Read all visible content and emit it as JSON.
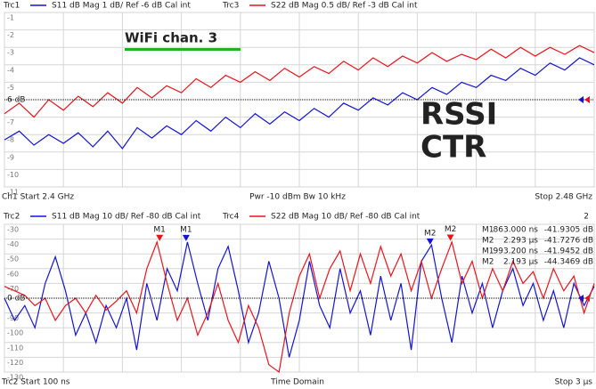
{
  "chart_data": [
    {
      "type": "line",
      "series": [
        {
          "name": "Trc1",
          "info": "S11  dB Mag  1 dB/ Ref -6 dB  Cal int",
          "color": "#1414d2",
          "values": [
            -8.3,
            -7.8,
            -8.6,
            -8.0,
            -8.5,
            -7.9,
            -8.7,
            -7.8,
            -8.8,
            -7.6,
            -8.2,
            -7.5,
            -8.0,
            -7.2,
            -7.8,
            -7.0,
            -7.6,
            -6.8,
            -7.4,
            -6.7,
            -7.2,
            -6.5,
            -7.0,
            -6.2,
            -6.6,
            -5.9,
            -6.3,
            -5.6,
            -6.0,
            -5.3,
            -5.7,
            -5.0,
            -5.3,
            -4.6,
            -4.9,
            -4.2,
            -4.6,
            -3.9,
            -4.3,
            -3.6,
            -4.0
          ]
        },
        {
          "name": "Trc3",
          "info": "S22  dB Mag  0.5 dB/ Ref -3 dB  Cal int",
          "color": "#e8141c",
          "values": [
            -6.8,
            -6.2,
            -7.0,
            -6.0,
            -6.6,
            -5.8,
            -6.4,
            -5.6,
            -6.2,
            -5.3,
            -5.9,
            -5.2,
            -5.6,
            -4.8,
            -5.3,
            -4.6,
            -5.0,
            -4.4,
            -4.9,
            -4.2,
            -4.7,
            -4.1,
            -4.5,
            -3.8,
            -4.3,
            -3.6,
            -4.1,
            -3.5,
            -3.9,
            -3.3,
            -3.8,
            -3.4,
            -3.7,
            -3.1,
            -3.6,
            -3.0,
            -3.5,
            -3.0,
            -3.4,
            -2.9,
            -3.3
          ]
        }
      ],
      "x": [
        2.4,
        2.402,
        2.404,
        2.406,
        2.408,
        2.41,
        2.412,
        2.414,
        2.416,
        2.418,
        2.42,
        2.422,
        2.424,
        2.426,
        2.428,
        2.43,
        2.432,
        2.434,
        2.436,
        2.438,
        2.44,
        2.442,
        2.444,
        2.446,
        2.448,
        2.45,
        2.452,
        2.454,
        2.456,
        2.458,
        2.46,
        2.462,
        2.464,
        2.466,
        2.468,
        2.47,
        2.472,
        2.474,
        2.476,
        2.478,
        2.48
      ],
      "xlim": [
        2.4,
        2.48
      ],
      "xgrid": [
        2.4,
        2.408,
        2.416,
        2.424,
        2.432,
        2.44,
        2.448,
        2.456,
        2.464,
        2.472,
        2.48
      ],
      "ylim": [
        -11,
        -1
      ],
      "yticks": [
        -1,
        -2,
        -3,
        -4,
        -5,
        -7,
        -8,
        -9,
        -10,
        -11
      ],
      "ref": {
        "value": -6,
        "label": "6 dB"
      },
      "annotations": [
        {
          "text": "WiFi chan. 3",
          "color": "#1fb51f"
        },
        {
          "text": "RSSI",
          "color": "#e8141c"
        },
        {
          "text": "CTR",
          "color": "#1414d2"
        }
      ],
      "footer": [
        "Ch1  Start  2.4 GHz",
        "Pwr  -10 dBm  Bw  10 kHz",
        "Stop  2.48 GHz"
      ]
    },
    {
      "type": "line",
      "channel": "2",
      "series": [
        {
          "name": "Trc2",
          "info": "S11  dB Mag  10 dB/ Ref -80 dB  Cal int",
          "color": "#1414d2",
          "values": [
            -80,
            -95,
            -85,
            -100,
            -70,
            -52,
            -75,
            -105,
            -90,
            -110,
            -85,
            -100,
            -80,
            -115,
            -70,
            -95,
            -60,
            -75,
            -42,
            -70,
            -95,
            -60,
            -45,
            -75,
            -110,
            -90,
            -55,
            -80,
            -120,
            -95,
            -55,
            -85,
            -100,
            -60,
            -90,
            -75,
            -105,
            -65,
            -95,
            -70,
            -115,
            -55,
            -44,
            -80,
            -110,
            -65,
            -90,
            -70,
            -100,
            -75,
            -60,
            -85,
            -70,
            -95,
            -75,
            -100,
            -70,
            -85,
            -72
          ]
        },
        {
          "name": "Trc4",
          "info": "S22  dB Mag  10 dB/ Ref -80 dB  Cal int",
          "color": "#e8141c",
          "values": [
            -72,
            -75,
            -78,
            -85,
            -80,
            -95,
            -85,
            -80,
            -90,
            -78,
            -88,
            -82,
            -75,
            -90,
            -60,
            -42,
            -70,
            -95,
            -80,
            -105,
            -90,
            -70,
            -95,
            -110,
            -85,
            -100,
            -125,
            -130,
            -90,
            -65,
            -50,
            -80,
            -60,
            -48,
            -75,
            -50,
            -70,
            -45,
            -65,
            -50,
            -75,
            -55,
            -80,
            -60,
            -42,
            -70,
            -55,
            -80,
            -60,
            -75,
            -55,
            -70,
            -62,
            -80,
            -60,
            -75,
            -65,
            -90,
            -70
          ]
        }
      ],
      "x": [
        100,
        150,
        200,
        250,
        300,
        350,
        400,
        450,
        500,
        550,
        600,
        650,
        700,
        750,
        800,
        850,
        900,
        950,
        1000,
        1050,
        1100,
        1150,
        1200,
        1250,
        1300,
        1350,
        1400,
        1450,
        1500,
        1550,
        1600,
        1650,
        1700,
        1750,
        1800,
        1850,
        1900,
        1950,
        2000,
        2050,
        2100,
        2150,
        2200,
        2250,
        2300,
        2350,
        2400,
        2450,
        2500,
        2550,
        2600,
        2650,
        2700,
        2750,
        2800,
        2850,
        2900,
        2950,
        3000
      ],
      "xlim": [
        100,
        3000
      ],
      "xgrid": [
        100,
        390,
        680,
        970,
        1260,
        1550,
        1840,
        2130,
        2420,
        2710,
        3000
      ],
      "ylim": [
        -130,
        -30
      ],
      "yticks": [
        -30,
        -40,
        -50,
        -60,
        -70,
        -90,
        -100,
        -110,
        -120,
        -130
      ],
      "ref": {
        "value": -80,
        "label": "0 dB"
      },
      "markers": [
        {
          "name": "M1",
          "color": "#e8141c",
          "x": 863,
          "x_label": "863.000 ns",
          "y": -41.9305,
          "y_label": "-41.9305 dB"
        },
        {
          "name": "M2",
          "color": "#e8141c",
          "x": 2293,
          "x_label": "2.293 µs",
          "y": -41.7276,
          "y_label": "-41.7276 dB"
        },
        {
          "name": "M1",
          "color": "#1414d2",
          "x": 993.2,
          "x_label": "993.200 ns",
          "y": -41.9452,
          "y_label": "-41.9452 dB"
        },
        {
          "name": "M2",
          "color": "#1414d2",
          "x": 2193,
          "x_label": "2.193 µs",
          "y": -44.3469,
          "y_label": "-44.3469 dB"
        }
      ],
      "footer": [
        "Trc2  Start  100 ns",
        "Time Domain",
        "Stop  3 µs"
      ]
    }
  ]
}
